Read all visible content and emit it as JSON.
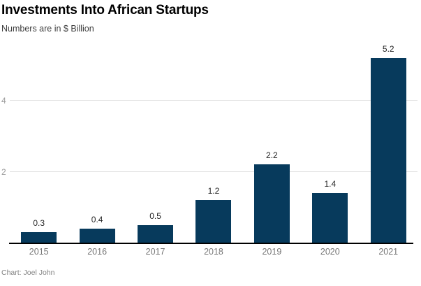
{
  "chart_data": {
    "type": "bar",
    "title": "Investments Into African Startups",
    "subtitle": "Numbers are in $ Billion",
    "caption": "Chart: Joel John",
    "categories": [
      "2015",
      "2016",
      "2017",
      "2018",
      "2019",
      "2020",
      "2021"
    ],
    "values": [
      0.3,
      0.4,
      0.5,
      1.2,
      2.2,
      1.4,
      5.2
    ],
    "value_labels": [
      "0.3",
      "0.4",
      "0.5",
      "1.2",
      "2.2",
      "1.4",
      "5.2"
    ],
    "xlabel": "",
    "ylabel": "",
    "yticks": [
      2,
      4
    ],
    "ytick_labels": [
      "2",
      "4"
    ],
    "ylim": [
      0,
      5.66
    ],
    "grid": true,
    "legend": "none"
  },
  "colors": {
    "bar": "#073A5C",
    "gridline": "#E2E2E2",
    "axis_line": "#000000",
    "title": "#000000",
    "subtitle": "#3D3D3D",
    "value_label": "#262626",
    "x_tick": "#757575",
    "y_tick": "#9B9B9B",
    "caption": "#828282",
    "background": "#FFFFFF"
  }
}
